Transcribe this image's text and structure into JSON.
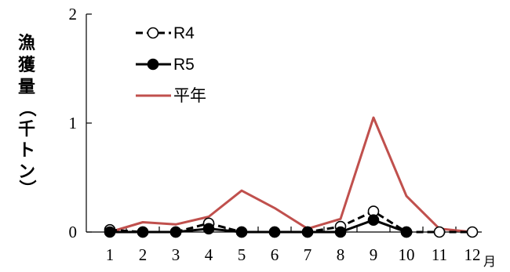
{
  "chart_data": {
    "type": "line",
    "x": [
      1,
      2,
      3,
      4,
      5,
      6,
      7,
      8,
      9,
      10,
      11,
      12
    ],
    "x_unit": "月",
    "ylabel": "漁獲量（千トン）",
    "ylim": [
      0,
      2
    ],
    "yticks": [
      0,
      1,
      2
    ],
    "legend_position": "top-left",
    "series": [
      {
        "name": "R4",
        "style": "dashed-open-circle",
        "color": "#000000",
        "values": [
          0.02,
          0.0,
          0.0,
          0.08,
          0.0,
          0.0,
          0.0,
          0.05,
          0.19,
          0.0,
          0.0,
          0.0
        ]
      },
      {
        "name": "R5",
        "style": "solid-filled-circle",
        "color": "#000000",
        "values": [
          0.0,
          0.0,
          0.0,
          0.03,
          0.0,
          0.0,
          0.0,
          0.0,
          0.11,
          0.0,
          null,
          null
        ]
      },
      {
        "name": "平年",
        "style": "solid-line",
        "color": "#c0504d",
        "values": [
          0.0,
          0.09,
          0.07,
          0.14,
          0.38,
          0.22,
          0.03,
          0.12,
          1.05,
          0.33,
          0.03,
          0.0
        ]
      }
    ]
  }
}
